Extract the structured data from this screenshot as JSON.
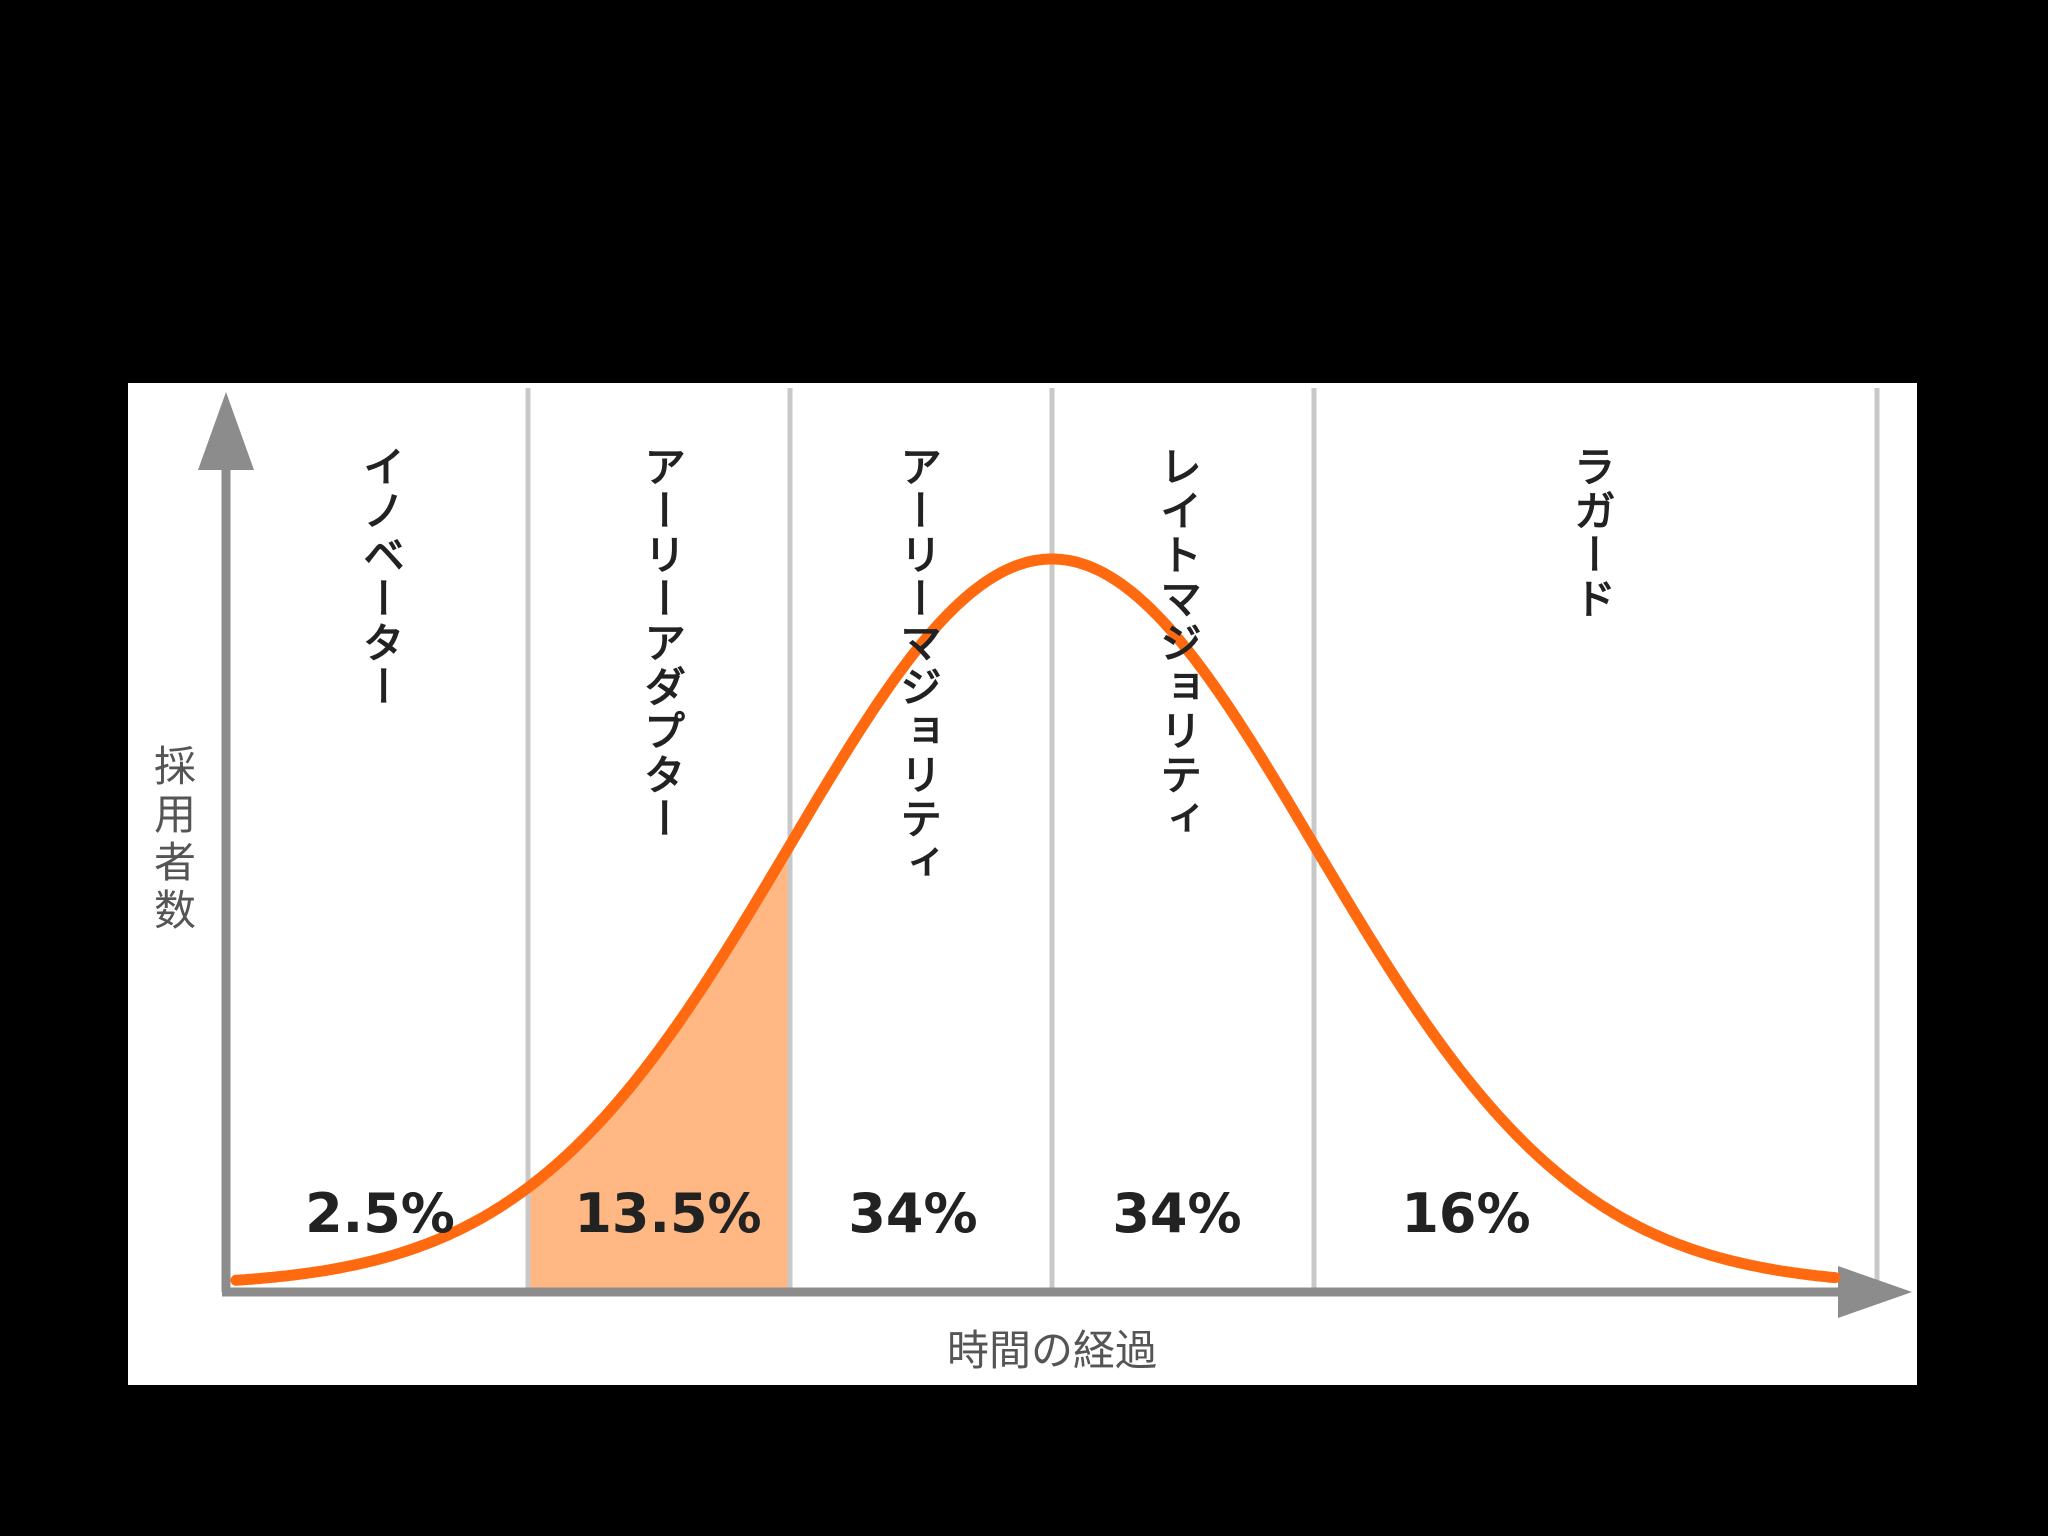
{
  "chart_data": {
    "type": "area",
    "xlabel": "時間の経過",
    "ylabel": "採用者数",
    "segments": [
      {
        "name": "イノベーター",
        "percent": "2.5%",
        "value": 2.5,
        "highlighted": false
      },
      {
        "name": "アーリーアダプター",
        "percent": "13.5%",
        "value": 13.5,
        "highlighted": true
      },
      {
        "name": "アーリーマジョリティ",
        "percent": "34%",
        "value": 34,
        "highlighted": false
      },
      {
        "name": "レイトマジョリティ",
        "percent": "34%",
        "value": 34,
        "highlighted": false
      },
      {
        "name": "ラガード",
        "percent": "16%",
        "value": 16,
        "highlighted": false
      }
    ],
    "curve": "normal-distribution",
    "boundaries_in_sd": [
      -2,
      -1,
      0,
      1
    ],
    "grid": false,
    "legend": "none"
  },
  "colors": {
    "background": "#000000",
    "panel": "#ffffff",
    "curve": "#ff6a10",
    "highlight_fill": "#ffb784",
    "axis": "#8c8c8c",
    "divider": "#c8c8c8",
    "text": "#222222",
    "axis_text": "#555555"
  }
}
